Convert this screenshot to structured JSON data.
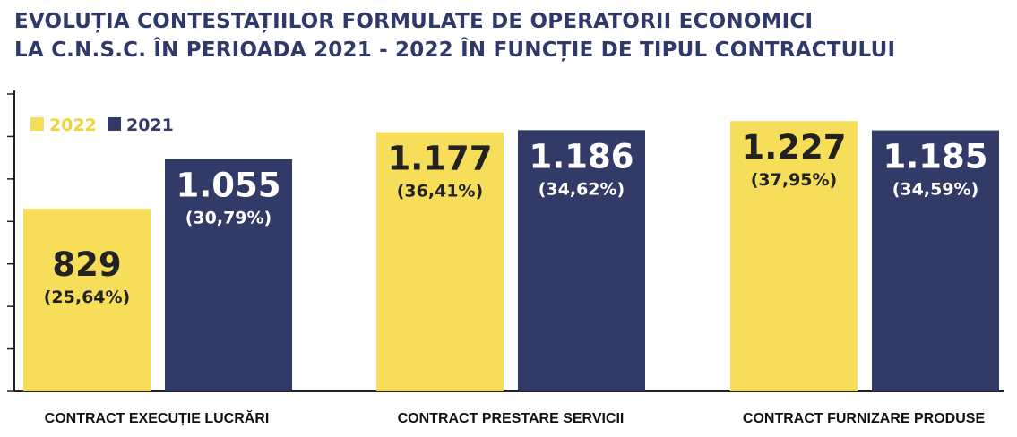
{
  "title": {
    "line1": "EVOLUȚIA CONTESTAȚIILOR FORMULATE DE OPERATORII ECONOMICI",
    "line2": "LA C.N.S.C. ÎN PERIOADA 2021 - 2022 ÎN FUNCȚIE DE TIPUL CONTRACTULUI"
  },
  "colors": {
    "y2022": "#f7de5a",
    "y2021": "#323a68",
    "title": "#2f3a6b",
    "axis": "#222222"
  },
  "chart_data": {
    "type": "bar",
    "categories": [
      "CONTRACT EXECUȚIE LUCRĂRI",
      "CONTRACT PRESTARE SERVICII",
      "CONTRACT FURNIZARE PRODUSE"
    ],
    "ylim": [
      0,
      1350
    ],
    "grid": false,
    "legend": "top-left",
    "series": [
      {
        "name": "2022",
        "values": [
          829,
          1177,
          1227
        ],
        "value_labels": [
          "829",
          "1.177",
          "1.227"
        ],
        "percent_labels": [
          "(25,64%)",
          "(36,41%)",
          "(37,95%)"
        ]
      },
      {
        "name": "2021",
        "values": [
          1055,
          1186,
          1185
        ],
        "value_labels": [
          "1.055",
          "1.186",
          "1.185"
        ],
        "percent_labels": [
          "(30,79%)",
          "(34,62%)",
          "(34,59%)"
        ]
      }
    ]
  }
}
